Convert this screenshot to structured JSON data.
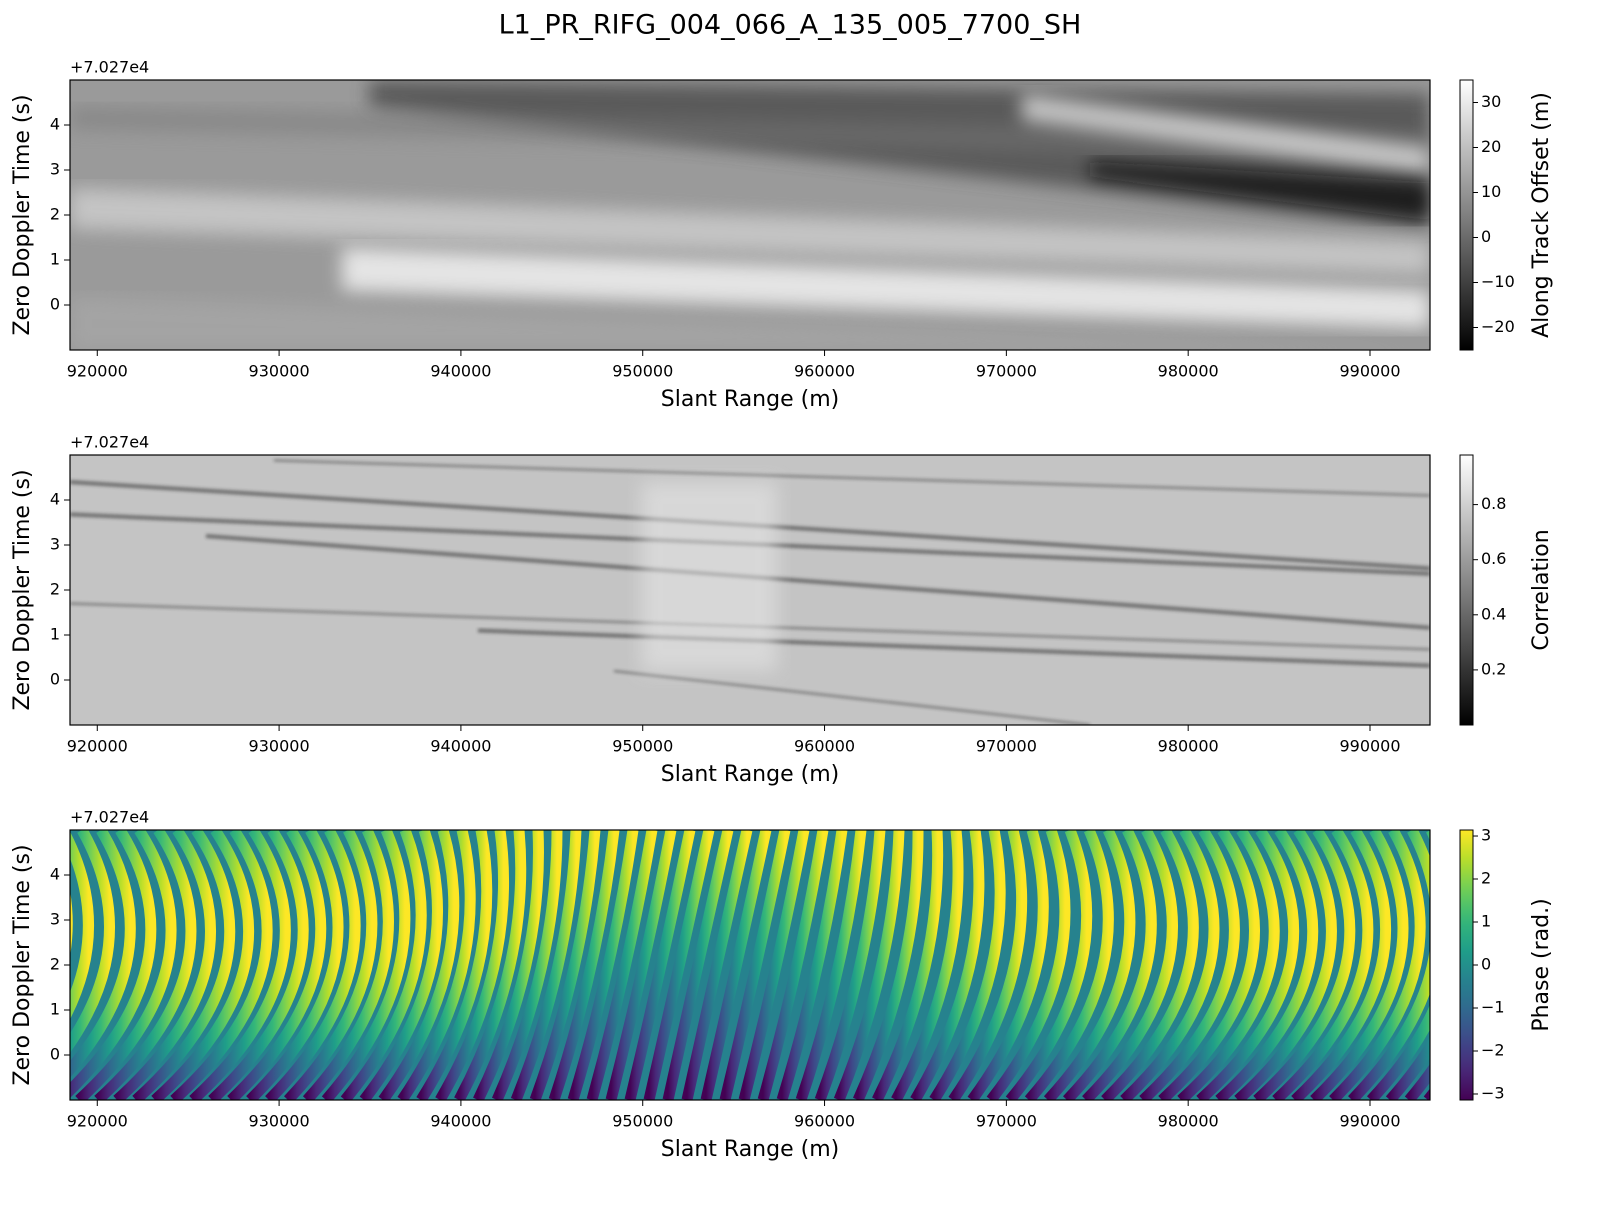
{
  "title": "L1_PR_RIFG_004_066_A_135_005_7700_SH",
  "chart_data": [
    {
      "type": "image",
      "xlabel": "Slant Range (m)",
      "ylabel": "Zero Doppler Time (s)",
      "y_offset_label": "+7.027e4",
      "xlim": [
        918500,
        993300
      ],
      "xticks": [
        920000,
        930000,
        940000,
        950000,
        960000,
        970000,
        980000,
        990000
      ],
      "ylim": [
        -1,
        5
      ],
      "yticks": [
        0,
        1,
        2,
        3,
        4
      ],
      "colorbar": {
        "label": "Along Track Offset (m)",
        "colormap": "gray",
        "clim": [
          -25,
          35
        ],
        "ticks": [
          {
            "value": -20,
            "label": "−20"
          },
          {
            "value": -10,
            "label": "−10"
          },
          0,
          10,
          20,
          30
        ]
      }
    },
    {
      "type": "image",
      "xlabel": "Slant Range (m)",
      "ylabel": "Zero Doppler Time (s)",
      "y_offset_label": "+7.027e4",
      "xlim": [
        918500,
        993300
      ],
      "xticks": [
        920000,
        930000,
        940000,
        950000,
        960000,
        970000,
        980000,
        990000
      ],
      "ylim": [
        -1,
        5
      ],
      "yticks": [
        0,
        1,
        2,
        3,
        4
      ],
      "colorbar": {
        "label": "Correlation",
        "colormap": "gray",
        "clim": [
          0,
          0.98
        ],
        "ticks": [
          0.2,
          0.4,
          0.6,
          0.8
        ]
      }
    },
    {
      "type": "image",
      "xlabel": "Slant Range (m)",
      "ylabel": "Zero Doppler Time (s)",
      "y_offset_label": "+7.027e4",
      "xlim": [
        918500,
        993300
      ],
      "xticks": [
        920000,
        930000,
        940000,
        950000,
        960000,
        970000,
        980000,
        990000
      ],
      "ylim": [
        -1,
        5
      ],
      "yticks": [
        0,
        1,
        2,
        3,
        4
      ],
      "colorbar": {
        "label": "Phase (rad.)",
        "colormap": "viridis",
        "clim": [
          -3.14,
          3.14
        ],
        "ticks": [
          {
            "value": -3,
            "label": "−3"
          },
          {
            "value": -2,
            "label": "−2"
          },
          {
            "value": -1,
            "label": "−1"
          },
          0,
          1,
          2,
          3
        ]
      }
    }
  ]
}
